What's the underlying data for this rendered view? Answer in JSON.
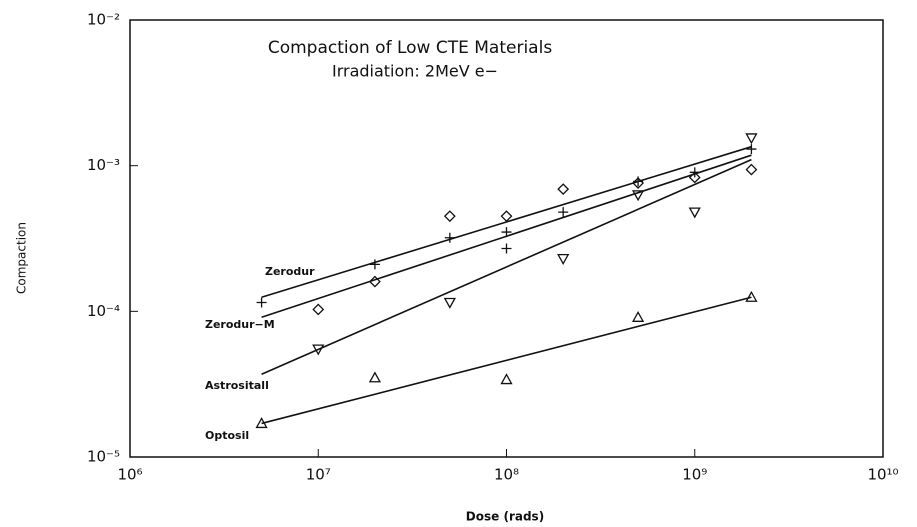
{
  "chart_data": {
    "type": "scatter",
    "title": "Compaction of Low CTE Materials",
    "subtitle": "Irradiation: 2MeV e−",
    "x_label": "Dose (rads)",
    "y_label": "Compaction",
    "xscale": "log",
    "yscale": "log",
    "xlim": [
      1000000,
      10000000000
    ],
    "ylim": [
      1e-05,
      0.01
    ],
    "xticks": [
      {
        "value": 1000000,
        "label": "10⁶"
      },
      {
        "value": 10000000,
        "label": "10⁷"
      },
      {
        "value": 100000000,
        "label": "10⁸"
      },
      {
        "value": 1000000000,
        "label": "10⁹"
      },
      {
        "value": 10000000000,
        "label": "10¹⁰"
      }
    ],
    "yticks": [
      {
        "value": 1e-05,
        "label": "10⁻⁵"
      },
      {
        "value": 0.0001,
        "label": "10⁻⁴"
      },
      {
        "value": 0.001,
        "label": "10⁻³"
      },
      {
        "value": 0.01,
        "label": "10⁻²"
      }
    ],
    "series": [
      {
        "name": "Zerodur",
        "color": "#111111",
        "marker": "plus",
        "x": [
          5000000,
          20000000,
          50000000,
          100000000,
          100000000,
          200000000,
          500000000,
          1000000000,
          2000000000
        ],
        "values": [
          0.000115,
          0.00021,
          0.00032,
          0.00027,
          0.00035,
          0.00048,
          0.00078,
          0.0009,
          0.0013
        ],
        "fit_x": [
          5000000,
          2000000000
        ],
        "fit_y": [
          0.000125,
          0.00135
        ]
      },
      {
        "name": "Zerodur−M",
        "color": "#111111",
        "marker": "diamond",
        "x": [
          10000000,
          20000000,
          50000000,
          100000000,
          200000000,
          500000000,
          1000000000,
          2000000000
        ],
        "values": [
          0.000103,
          0.00016,
          0.00045,
          0.00045,
          0.00069,
          0.00076,
          0.00083,
          0.00094
        ],
        "fit_x": [
          5000000,
          2000000000
        ],
        "fit_y": [
          9.1e-05,
          0.00118
        ]
      },
      {
        "name": "Astrositall",
        "color": "#111111",
        "marker": "triangle-down",
        "x": [
          10000000,
          50000000,
          200000000,
          500000000,
          1000000000,
          2000000000
        ],
        "values": [
          5.5e-05,
          0.000115,
          0.00023,
          0.00063,
          0.00048,
          0.00155
        ],
        "fit_x": [
          5000000,
          2000000000
        ],
        "fit_y": [
          3.7e-05,
          0.0011
        ]
      },
      {
        "name": "Optosil",
        "color": "#111111",
        "marker": "triangle-up",
        "x": [
          5000000,
          20000000,
          100000000,
          500000000,
          2000000000
        ],
        "values": [
          1.7e-05,
          3.5e-05,
          3.4e-05,
          9.1e-05,
          0.000125
        ],
        "fit_x": [
          5000000,
          2000000000
        ],
        "fit_y": [
          1.7e-05,
          0.000125
        ]
      }
    ]
  }
}
